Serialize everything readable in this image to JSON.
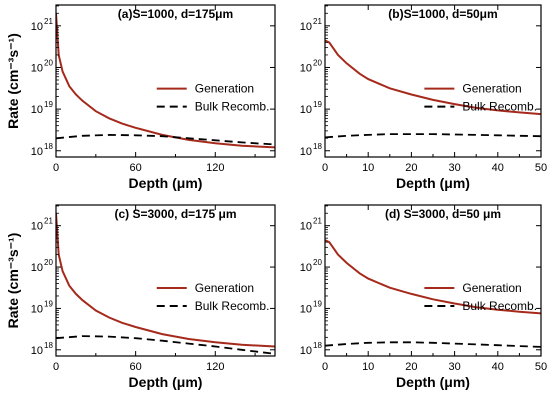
{
  "chart_data": [
    {
      "type": "line",
      "title": "(a)S=1000, d=175μm",
      "xlabel": "Depth (μm)",
      "ylabel": "Rate (cm⁻³s⁻¹)",
      "xlim": [
        0,
        165
      ],
      "ylim_log10": [
        17.85,
        21.5
      ],
      "yscale": "log",
      "xticks": [
        "0",
        "60",
        "120"
      ],
      "xtick_values": [
        0,
        60,
        120
      ],
      "ytick_exponents": [
        "18",
        "19",
        "20",
        "21"
      ],
      "ytick_base": "10",
      "legend_position": "right",
      "series": [
        {
          "name": "Generation",
          "color": "#a52a1c",
          "style": "solid",
          "x": [
            0,
            2,
            5,
            10,
            15,
            20,
            30,
            40,
            50,
            60,
            80,
            100,
            120,
            140,
            165
          ],
          "y_log10": [
            21.3,
            20.3,
            19.9,
            19.55,
            19.35,
            19.2,
            18.95,
            18.78,
            18.65,
            18.55,
            18.38,
            18.26,
            18.18,
            18.12,
            18.08
          ]
        },
        {
          "name": "Bulk Recomb.",
          "color": "#000000",
          "style": "dashed",
          "x": [
            0,
            20,
            40,
            60,
            80,
            100,
            120,
            140,
            165
          ],
          "y_log10": [
            18.3,
            18.36,
            18.38,
            18.37,
            18.35,
            18.3,
            18.25,
            18.2,
            18.15
          ]
        }
      ]
    },
    {
      "type": "line",
      "title": "(b)S=1000, d=50μm",
      "xlabel": "Depth (μm)",
      "ylabel": "",
      "xlim": [
        0,
        50
      ],
      "ylim_log10": [
        17.85,
        21.5
      ],
      "yscale": "log",
      "xticks": [
        "0",
        "10",
        "20",
        "30",
        "40",
        "50"
      ],
      "xtick_values": [
        0,
        10,
        20,
        30,
        40,
        50
      ],
      "ytick_exponents": [
        "18",
        "19",
        "20",
        "21"
      ],
      "ytick_base": "10",
      "legend_position": "right",
      "series": [
        {
          "name": "Generation",
          "color": "#a52a1c",
          "style": "solid",
          "x": [
            0,
            1,
            3,
            5,
            8,
            10,
            15,
            20,
            25,
            30,
            35,
            40,
            45,
            50
          ],
          "y_log10": [
            20.65,
            20.6,
            20.3,
            20.1,
            19.85,
            19.72,
            19.5,
            19.35,
            19.22,
            19.12,
            19.03,
            18.97,
            18.92,
            18.88
          ]
        },
        {
          "name": "Bulk Recomb.",
          "color": "#000000",
          "style": "dashed",
          "x": [
            0,
            5,
            10,
            15,
            20,
            25,
            30,
            35,
            40,
            45,
            50
          ],
          "y_log10": [
            18.32,
            18.36,
            18.38,
            18.4,
            18.4,
            18.4,
            18.39,
            18.38,
            18.37,
            18.36,
            18.35
          ]
        }
      ]
    },
    {
      "type": "line",
      "title": "(c) S=3000, d=175 μm",
      "xlabel": "Depth (μm)",
      "ylabel": "Rate (cm⁻³s⁻¹)",
      "xlim": [
        0,
        165
      ],
      "ylim_log10": [
        17.85,
        21.5
      ],
      "yscale": "log",
      "xticks": [
        "0",
        "60",
        "120"
      ],
      "xtick_values": [
        0,
        60,
        120
      ],
      "ytick_exponents": [
        "18",
        "19",
        "20",
        "21"
      ],
      "ytick_base": "10",
      "legend_position": "right",
      "series": [
        {
          "name": "Generation",
          "color": "#a52a1c",
          "style": "solid",
          "x": [
            0,
            2,
            5,
            10,
            15,
            20,
            30,
            40,
            50,
            60,
            80,
            100,
            120,
            140,
            165
          ],
          "y_log10": [
            21.3,
            20.3,
            19.9,
            19.55,
            19.35,
            19.2,
            18.95,
            18.78,
            18.65,
            18.55,
            18.38,
            18.26,
            18.18,
            18.12,
            18.08
          ]
        },
        {
          "name": "Bulk Recomb.",
          "color": "#000000",
          "style": "dashed",
          "x": [
            0,
            20,
            40,
            60,
            80,
            100,
            120,
            140,
            165
          ],
          "y_log10": [
            18.28,
            18.33,
            18.32,
            18.28,
            18.22,
            18.15,
            18.08,
            18.0,
            17.9
          ]
        }
      ]
    },
    {
      "type": "line",
      "title": "(d) S=3000, d=50 μm",
      "xlabel": "Depth (μm)",
      "ylabel": "",
      "xlim": [
        0,
        50
      ],
      "ylim_log10": [
        17.85,
        21.5
      ],
      "yscale": "log",
      "xticks": [
        "0",
        "10",
        "20",
        "30",
        "40",
        "50"
      ],
      "xtick_values": [
        0,
        10,
        20,
        30,
        40,
        50
      ],
      "ytick_exponents": [
        "18",
        "19",
        "20",
        "21"
      ],
      "ytick_base": "10",
      "legend_position": "right",
      "series": [
        {
          "name": "Generation",
          "color": "#a52a1c",
          "style": "solid",
          "x": [
            0,
            1,
            3,
            5,
            8,
            10,
            15,
            20,
            25,
            30,
            35,
            40,
            45,
            50
          ],
          "y_log10": [
            20.65,
            20.6,
            20.3,
            20.1,
            19.85,
            19.72,
            19.5,
            19.35,
            19.22,
            19.12,
            19.03,
            18.97,
            18.92,
            18.88
          ]
        },
        {
          "name": "Bulk Recomb.",
          "color": "#000000",
          "style": "dashed",
          "x": [
            0,
            5,
            10,
            15,
            20,
            25,
            30,
            35,
            40,
            45,
            50
          ],
          "y_log10": [
            18.1,
            18.14,
            18.17,
            18.18,
            18.18,
            18.17,
            18.15,
            18.13,
            18.11,
            18.09,
            18.07
          ]
        }
      ]
    }
  ]
}
